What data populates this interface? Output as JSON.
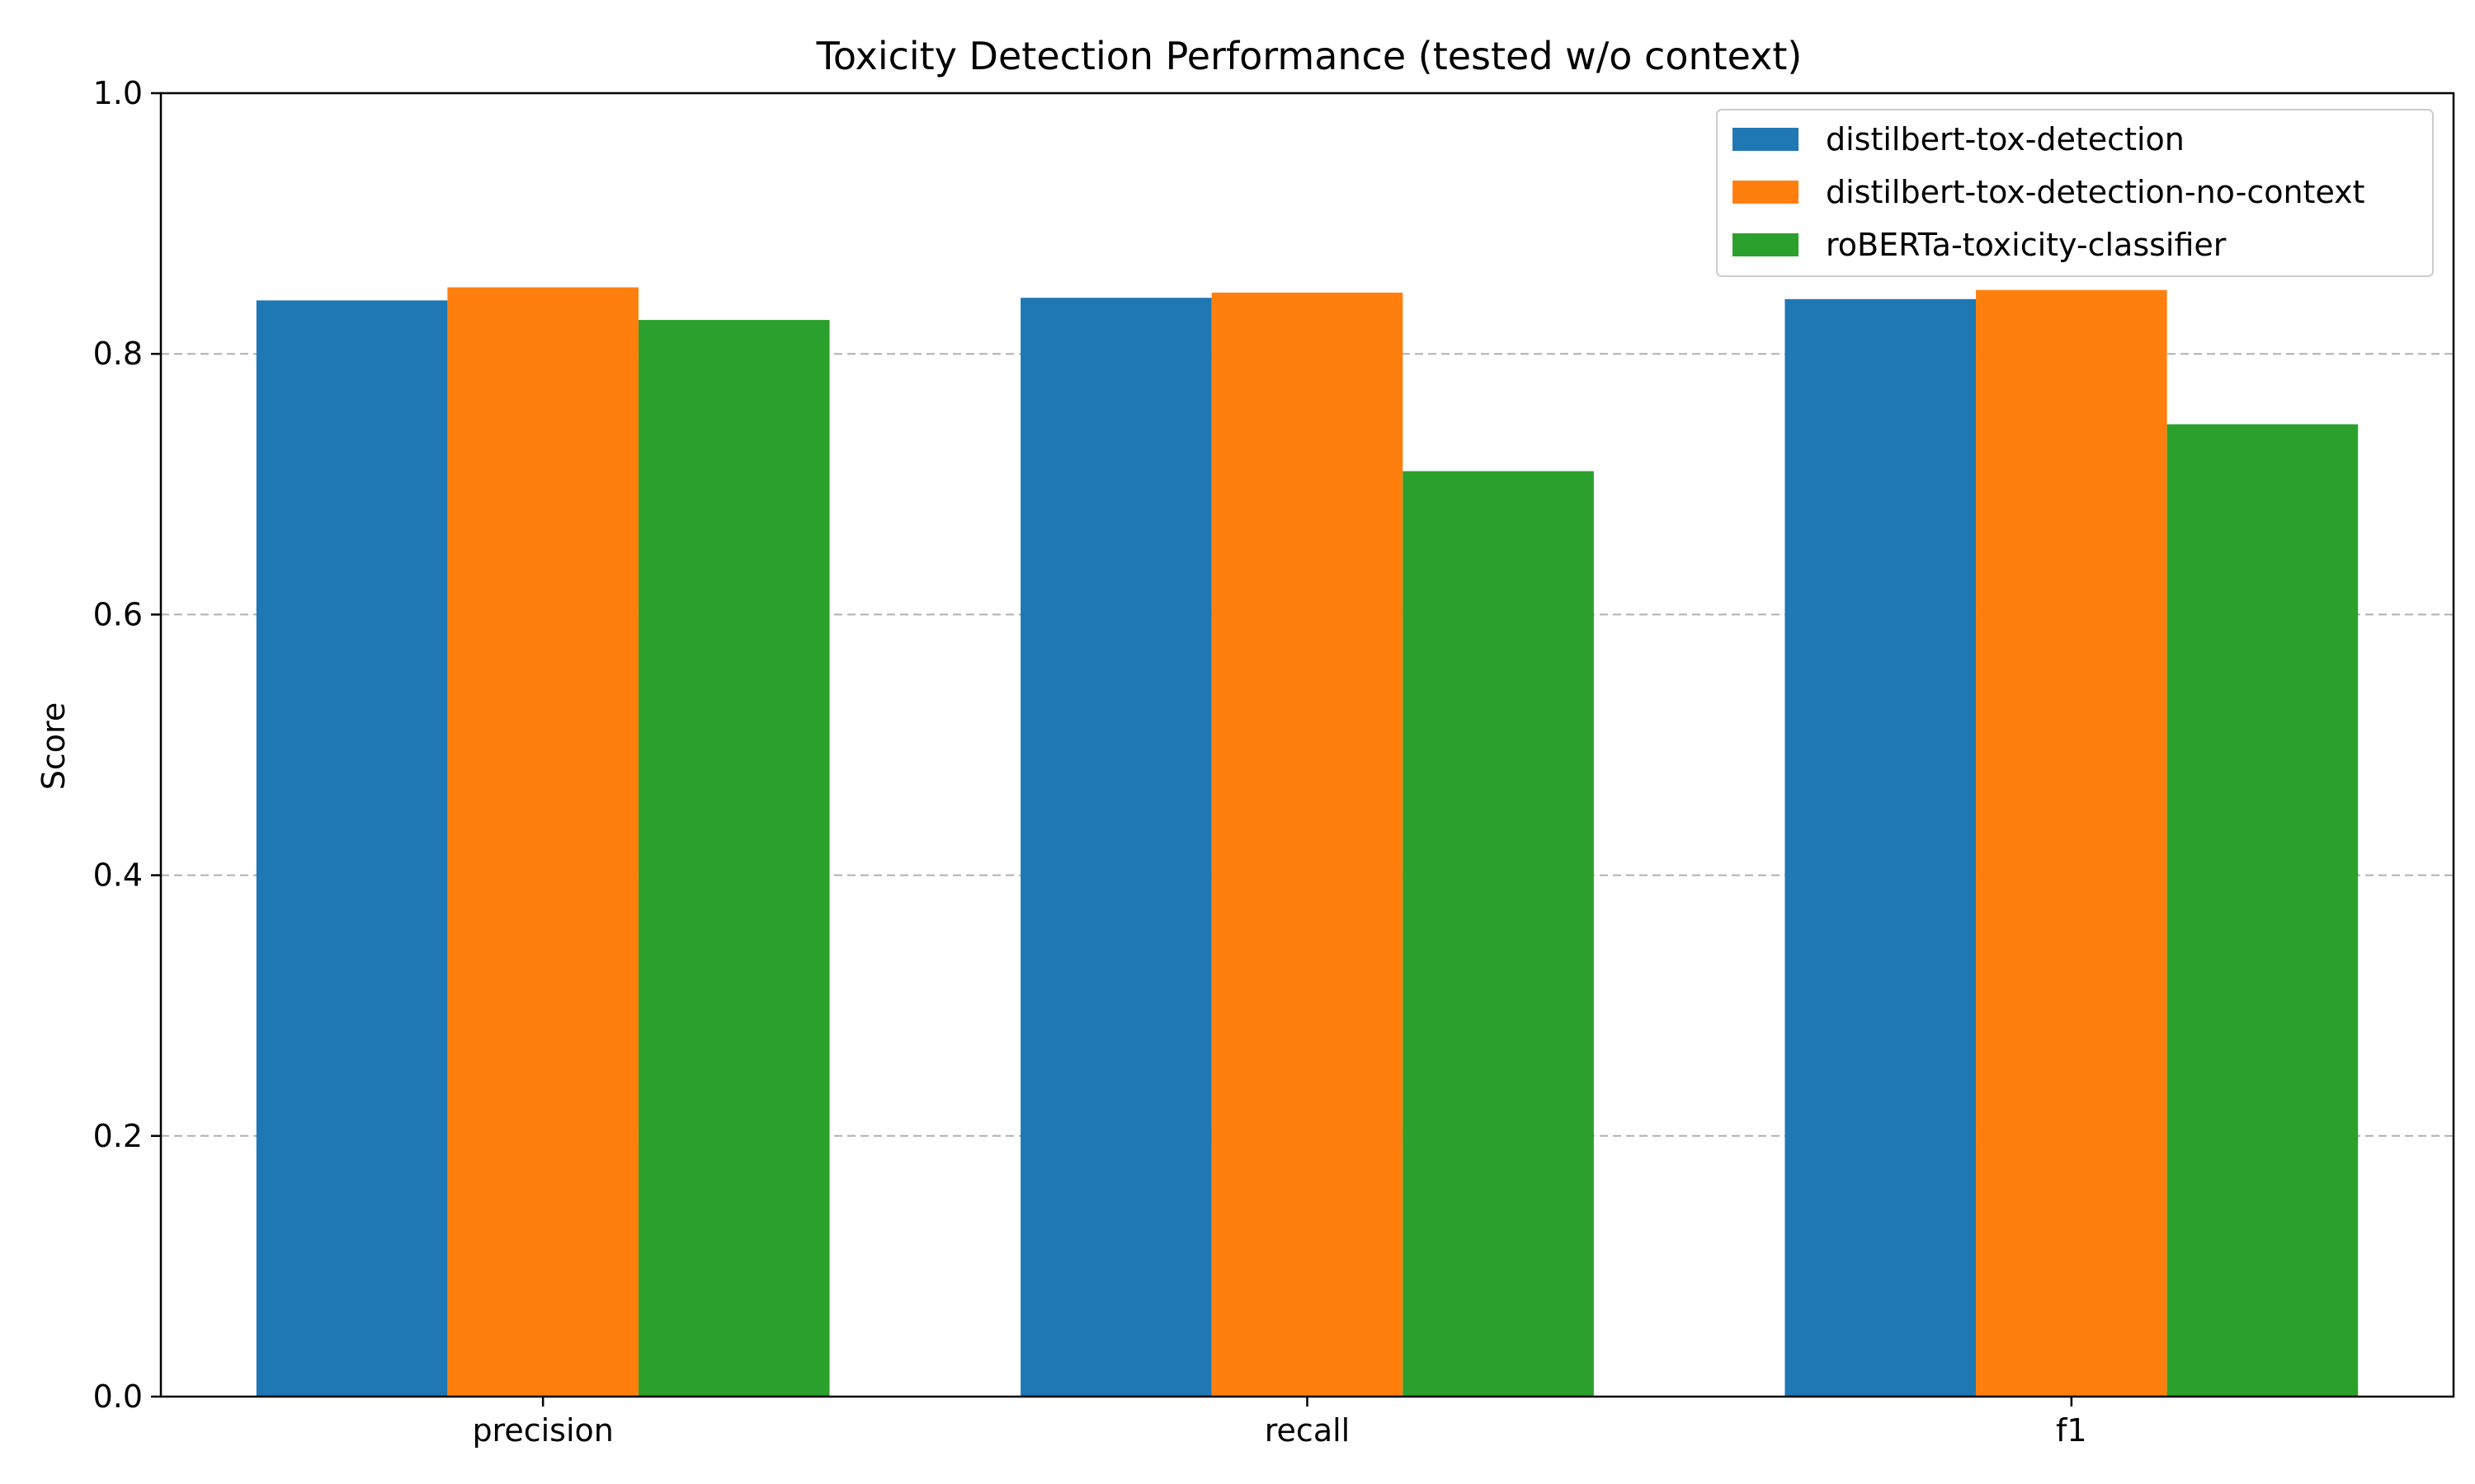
{
  "chart_data": {
    "type": "bar",
    "title": "Toxicity Detection Performance (tested w/o context)",
    "xlabel": "",
    "ylabel": "Score",
    "categories": [
      "precision",
      "recall",
      "f1"
    ],
    "series": [
      {
        "name": "distilbert-tox-detection",
        "color": "#1f77b4",
        "values": [
          0.841,
          0.843,
          0.842
        ]
      },
      {
        "name": "distilbert-tox-detection-no-context",
        "color": "#ff7f0e",
        "values": [
          0.851,
          0.847,
          0.849
        ]
      },
      {
        "name": "roBERTa-toxicity-classifier",
        "color": "#2ca02c",
        "values": [
          0.826,
          0.71,
          0.746
        ]
      }
    ],
    "ylim": [
      0,
      1.0
    ],
    "yticks": [
      "0.0",
      "0.2",
      "0.4",
      "0.6",
      "0.8",
      "1.0"
    ],
    "grid": "y-dashed",
    "legend_position": "top-right"
  }
}
